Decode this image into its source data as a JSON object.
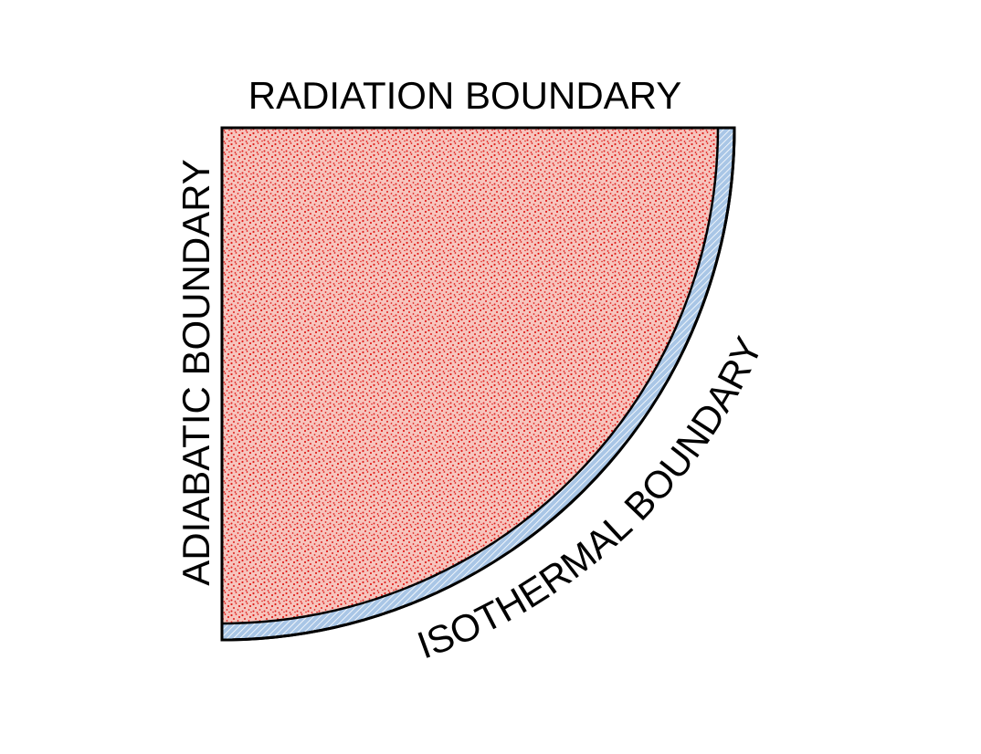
{
  "labels": {
    "top": "RADIATION BOUNDARY",
    "left": "ADIABATIC BOUNDARY",
    "arc": "ISOTHERMAL BOUNDARY"
  },
  "colors": {
    "domain_fill": "#f2a9a0",
    "domain_speckle": "#e0201c",
    "isothermal_layer": "#a9c6e6",
    "isothermal_hatch": "#ffffff",
    "outline": "#000000"
  },
  "regions": [
    {
      "name": "quarter-disc-domain",
      "pattern": "red-speckle"
    },
    {
      "name": "isothermal-shell",
      "pattern": "blue-hatch"
    }
  ]
}
